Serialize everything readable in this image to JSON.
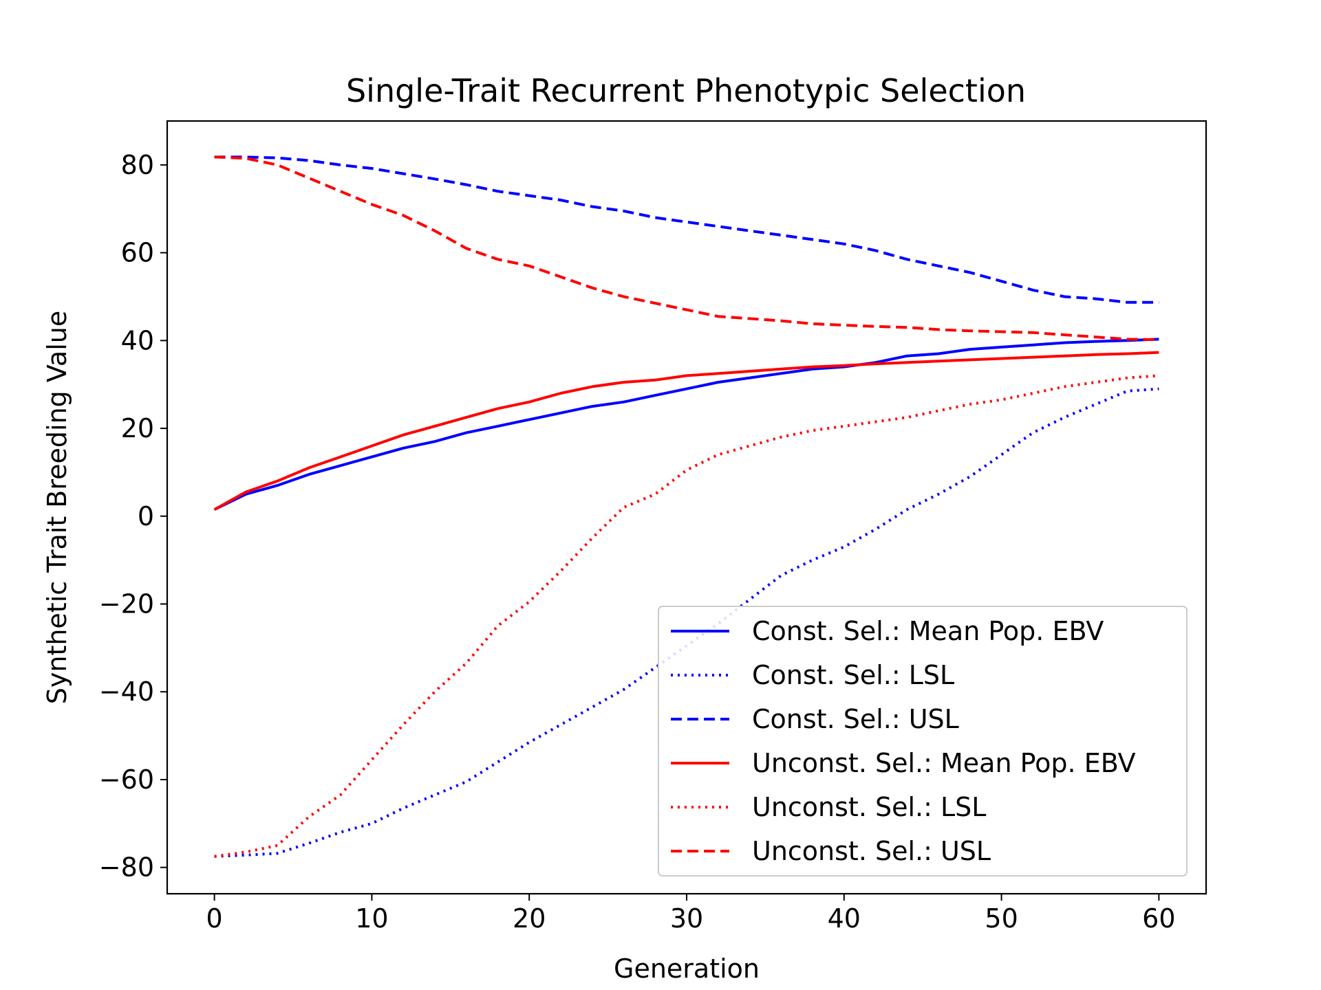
{
  "chart_data": {
    "type": "line",
    "title": "Single-Trait Recurrent Phenotypic Selection",
    "xlabel": "Generation",
    "ylabel": "Synthetic Trait Breeding Value",
    "xlim": [
      -3,
      63
    ],
    "ylim": [
      -86,
      90
    ],
    "xticks": [
      0,
      10,
      20,
      30,
      40,
      50,
      60
    ],
    "yticks": [
      -80,
      -60,
      -40,
      -20,
      0,
      20,
      40,
      60,
      80
    ],
    "grid": false,
    "legend_position": "lower-right",
    "x": [
      0,
      2,
      4,
      6,
      8,
      10,
      12,
      14,
      16,
      18,
      20,
      22,
      24,
      26,
      28,
      30,
      32,
      34,
      36,
      38,
      40,
      42,
      44,
      46,
      48,
      50,
      52,
      54,
      56,
      58,
      60
    ],
    "series": [
      {
        "name": "Const. Sel.: Mean Pop. EBV",
        "color": "#0000ff",
        "style": "solid",
        "values": [
          1.5,
          5,
          7,
          9.5,
          11.5,
          13.5,
          15.5,
          17,
          19,
          20.5,
          22,
          23.5,
          25,
          26,
          27.5,
          29,
          30.5,
          31.5,
          32.5,
          33.5,
          34,
          35,
          36.5,
          37,
          38,
          38.5,
          39,
          39.5,
          39.8,
          40,
          40.3
        ]
      },
      {
        "name": "Const. Sel.: LSL",
        "color": "#0000ff",
        "style": "dotted",
        "values": [
          -77.5,
          -77.2,
          -76.8,
          -74.5,
          -72,
          -70,
          -66.5,
          -63.5,
          -60.5,
          -56,
          -51.5,
          -47.5,
          -43.5,
          -39.5,
          -34.5,
          -29.5,
          -24.5,
          -19,
          -13.5,
          -10,
          -7,
          -3,
          1.5,
          5,
          9,
          14,
          19,
          22.5,
          25.5,
          28.5,
          29
        ]
      },
      {
        "name": "Const. Sel.: USL",
        "color": "#0000ff",
        "style": "dashed",
        "values": [
          81.8,
          81.8,
          81.6,
          81,
          80,
          79.2,
          78,
          76.8,
          75.5,
          74,
          73,
          72,
          70.5,
          69.5,
          68,
          67,
          66,
          65,
          64,
          63,
          62,
          60.5,
          58.5,
          57,
          55.5,
          53.5,
          51.5,
          50,
          49.5,
          48.7,
          48.7
        ]
      },
      {
        "name": "Unconst. Sel.: Mean Pop. EBV",
        "color": "#ff0000",
        "style": "solid",
        "values": [
          1.5,
          5.5,
          8,
          11,
          13.5,
          16,
          18.5,
          20.5,
          22.5,
          24.5,
          26,
          28,
          29.5,
          30.5,
          31,
          32,
          32.5,
          33,
          33.5,
          34,
          34.3,
          34.7,
          35,
          35.3,
          35.6,
          35.9,
          36.2,
          36.5,
          36.8,
          37,
          37.3
        ]
      },
      {
        "name": "Unconst. Sel.: LSL",
        "color": "#ff0000",
        "style": "dotted",
        "values": [
          -77.5,
          -76.5,
          -75,
          -68.5,
          -63.5,
          -55.5,
          -47.5,
          -40,
          -33.5,
          -25,
          -19.5,
          -12.5,
          -5,
          2,
          5,
          10.5,
          14,
          16,
          18,
          19.5,
          20.5,
          21.5,
          22.5,
          24,
          25.5,
          26.5,
          28,
          29.5,
          30.5,
          31.5,
          32
        ]
      },
      {
        "name": "Unconst. Sel.: USL",
        "color": "#ff0000",
        "style": "dashed",
        "values": [
          81.8,
          81.5,
          80,
          77,
          74,
          71,
          68.5,
          65,
          61,
          58.5,
          57,
          54.5,
          52,
          50,
          48.5,
          47,
          45.5,
          45,
          44.5,
          43.8,
          43.5,
          43.2,
          43,
          42.5,
          42.2,
          42,
          41.8,
          41.3,
          40.8,
          40.3,
          40.2
        ]
      }
    ]
  }
}
